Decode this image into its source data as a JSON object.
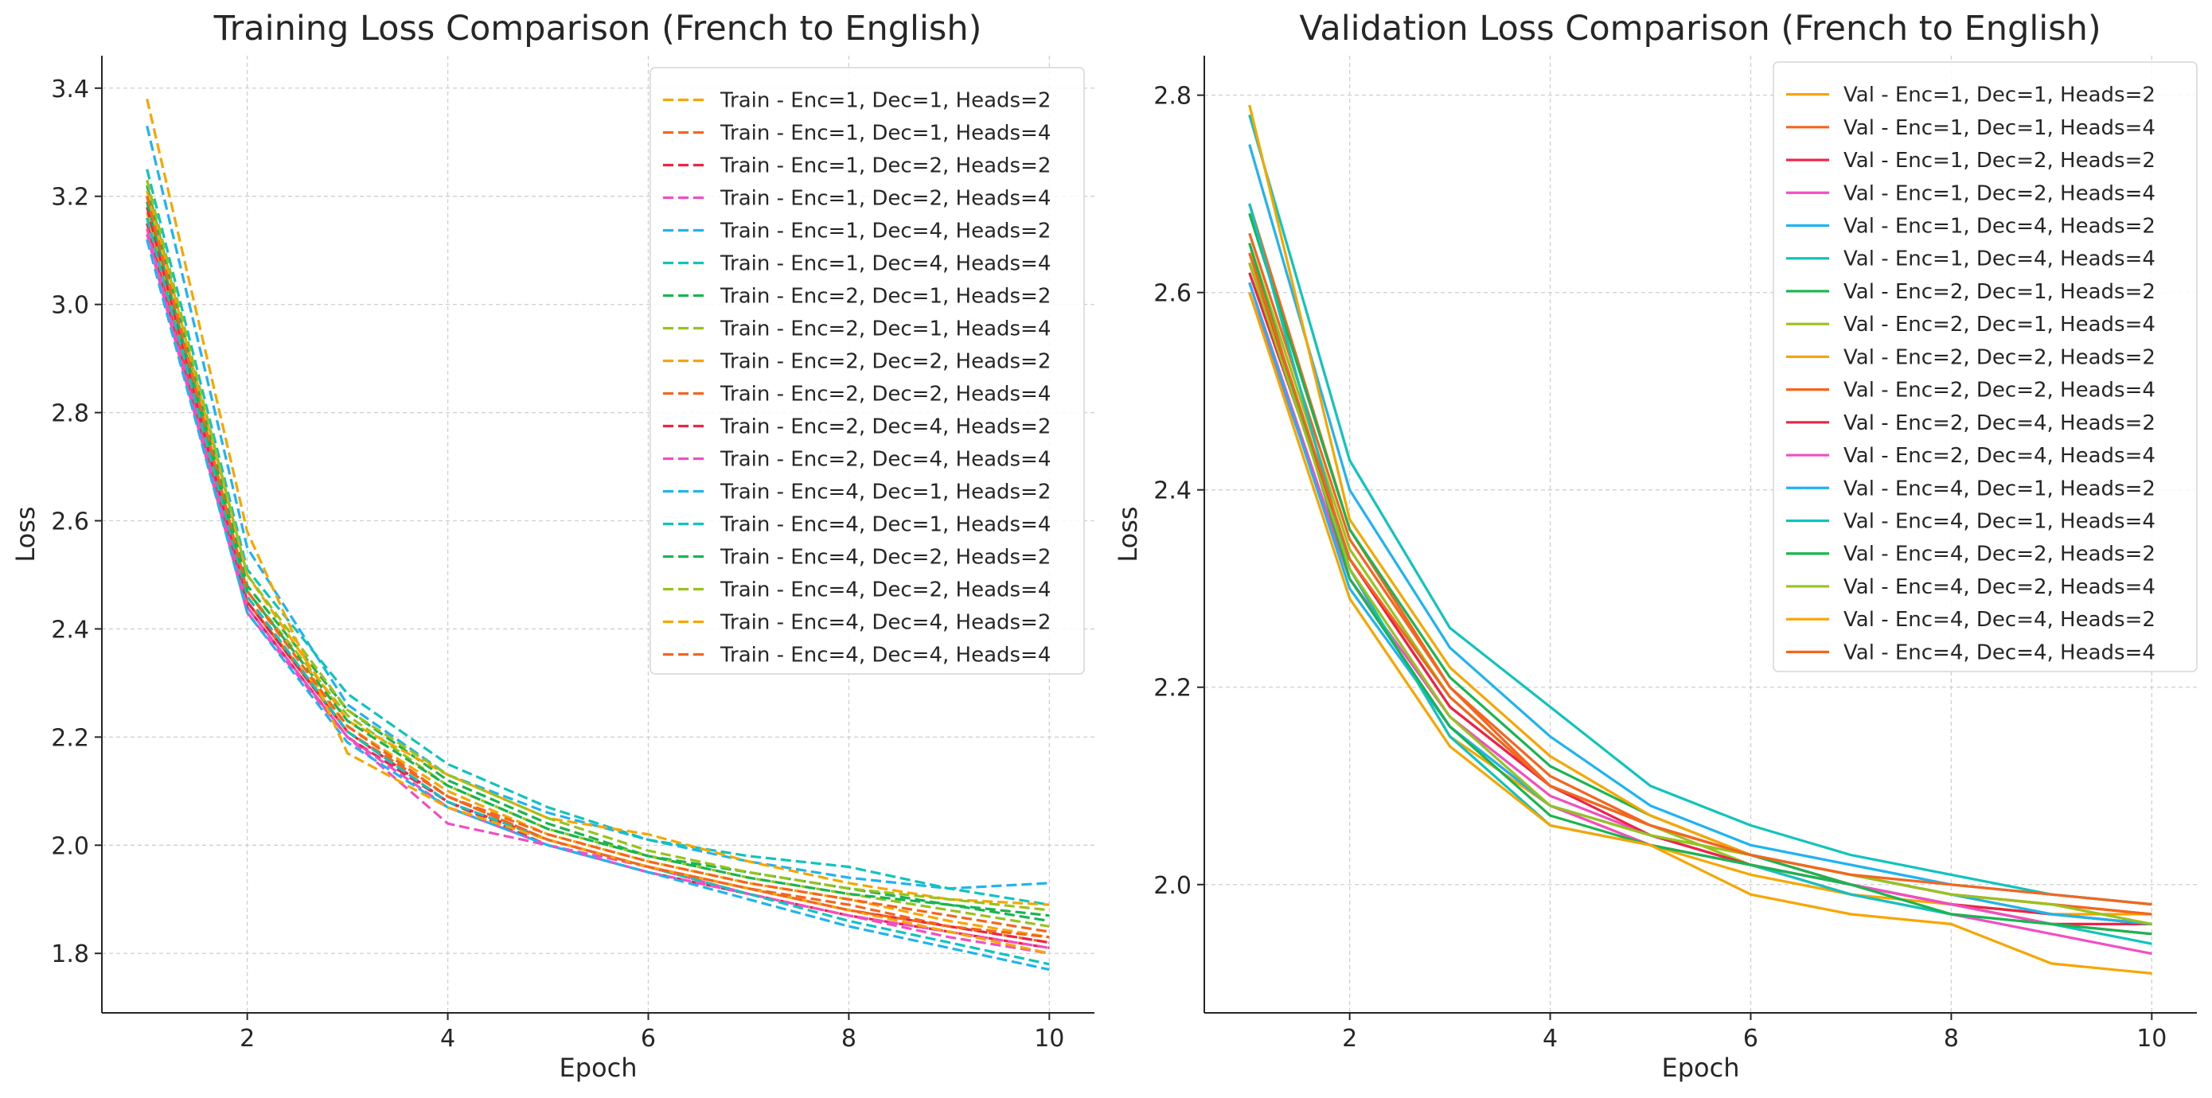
{
  "chart_data": [
    {
      "type": "line",
      "title": "Training Loss Comparison (French to English)",
      "xlabel": "Epoch",
      "ylabel": "Loss",
      "xlim": [
        0.55,
        10.45
      ],
      "ylim": [
        1.69,
        3.46
      ],
      "xticks": [
        2,
        4,
        6,
        8,
        10
      ],
      "yticks": [
        1.8,
        2.0,
        2.2,
        2.4,
        2.6,
        2.8,
        3.0,
        3.2,
        3.4
      ],
      "grid": true,
      "line_style": "dashed",
      "legend_position": "top-right",
      "x": [
        1,
        2,
        3,
        4,
        5,
        6,
        7,
        8,
        9,
        10
      ],
      "series": [
        {
          "name": "Train - Enc=1, Dec=1, Heads=2",
          "color": "#f7a600",
          "values": [
            3.17,
            2.45,
            2.22,
            2.1,
            2.02,
            1.97,
            1.93,
            1.9,
            1.86,
            1.83
          ]
        },
        {
          "name": "Train - Enc=1, Dec=1, Heads=4",
          "color": "#f5651e",
          "values": [
            3.19,
            2.46,
            2.21,
            2.09,
            2.01,
            1.96,
            1.92,
            1.89,
            1.85,
            1.82
          ]
        },
        {
          "name": "Train - Enc=1, Dec=2, Heads=2",
          "color": "#ed2347",
          "values": [
            3.15,
            2.44,
            2.2,
            2.08,
            2.0,
            1.95,
            1.91,
            1.87,
            1.84,
            1.81
          ]
        },
        {
          "name": "Train - Enc=1, Dec=2, Heads=4",
          "color": "#f24ec4",
          "values": [
            3.13,
            2.43,
            2.2,
            2.04,
            2.0,
            1.96,
            1.91,
            1.87,
            1.83,
            1.8
          ]
        },
        {
          "name": "Train - Enc=1, Dec=4, Heads=2",
          "color": "#1fb3f0",
          "values": [
            3.33,
            2.55,
            2.26,
            2.13,
            2.06,
            2.01,
            1.97,
            1.94,
            1.92,
            1.93
          ]
        },
        {
          "name": "Train - Enc=1, Dec=4, Heads=4",
          "color": "#0ec4bd",
          "values": [
            3.25,
            2.51,
            2.28,
            2.15,
            2.07,
            2.01,
            1.98,
            1.96,
            1.92,
            1.89
          ]
        },
        {
          "name": "Train - Enc=2, Dec=1, Heads=2",
          "color": "#19b550",
          "values": [
            3.22,
            2.48,
            2.25,
            2.12,
            2.04,
            1.98,
            1.95,
            1.92,
            1.89,
            1.86
          ]
        },
        {
          "name": "Train - Enc=2, Dec=1, Heads=4",
          "color": "#98c21c",
          "values": [
            3.2,
            2.47,
            2.24,
            2.11,
            2.03,
            1.98,
            1.94,
            1.91,
            1.88,
            1.85
          ]
        },
        {
          "name": "Train - Enc=2, Dec=2, Heads=2",
          "color": "#f7a600",
          "values": [
            3.21,
            2.5,
            2.23,
            2.13,
            2.05,
            2.02,
            1.97,
            1.93,
            1.9,
            1.89
          ]
        },
        {
          "name": "Train - Enc=2, Dec=2, Heads=4",
          "color": "#f5651e",
          "values": [
            3.16,
            2.45,
            2.21,
            2.09,
            2.02,
            1.97,
            1.93,
            1.9,
            1.87,
            1.84
          ]
        },
        {
          "name": "Train - Enc=2, Dec=4, Heads=2",
          "color": "#ed2347",
          "values": [
            3.18,
            2.45,
            2.21,
            2.08,
            2.01,
            1.96,
            1.92,
            1.88,
            1.85,
            1.82
          ]
        },
        {
          "name": "Train - Enc=2, Dec=4, Heads=4",
          "color": "#f24ec4",
          "values": [
            3.14,
            2.44,
            2.2,
            2.07,
            2.0,
            1.95,
            1.91,
            1.87,
            1.84,
            1.81
          ]
        },
        {
          "name": "Train - Enc=4, Dec=1, Heads=2",
          "color": "#1fb3f0",
          "values": [
            3.12,
            2.43,
            2.19,
            2.07,
            2.0,
            1.95,
            1.9,
            1.85,
            1.81,
            1.77
          ]
        },
        {
          "name": "Train - Enc=4, Dec=1, Heads=4",
          "color": "#0ec4bd",
          "values": [
            3.16,
            2.46,
            2.21,
            2.08,
            2.01,
            1.96,
            1.91,
            1.86,
            1.82,
            1.78
          ]
        },
        {
          "name": "Train - Enc=4, Dec=2, Heads=2",
          "color": "#19b550",
          "values": [
            3.19,
            2.47,
            2.23,
            2.11,
            2.03,
            1.98,
            1.94,
            1.91,
            1.89,
            1.87
          ]
        },
        {
          "name": "Train - Enc=4, Dec=2, Heads=4",
          "color": "#98c21c",
          "values": [
            3.23,
            2.5,
            2.25,
            2.13,
            2.05,
            1.99,
            1.95,
            1.92,
            1.9,
            1.88
          ]
        },
        {
          "name": "Train - Enc=4, Dec=4, Heads=2",
          "color": "#f7a600",
          "values": [
            3.38,
            2.58,
            2.17,
            2.07,
            2.01,
            1.96,
            1.92,
            1.88,
            1.84,
            1.8
          ]
        },
        {
          "name": "Train - Enc=4, Dec=4, Heads=4",
          "color": "#f5651e",
          "values": [
            3.2,
            2.47,
            2.22,
            2.09,
            2.01,
            1.96,
            1.92,
            1.88,
            1.85,
            1.83
          ]
        }
      ]
    },
    {
      "type": "line",
      "title": "Validation Loss Comparison (French to English)",
      "xlabel": "Epoch",
      "ylabel": "Loss",
      "xlim": [
        0.55,
        10.45
      ],
      "ylim": [
        1.87,
        2.84
      ],
      "xticks": [
        2,
        4,
        6,
        8,
        10
      ],
      "yticks": [
        2.0,
        2.2,
        2.4,
        2.6,
        2.8
      ],
      "grid": true,
      "line_style": "solid",
      "legend_position": "top-right",
      "x": [
        1,
        2,
        3,
        4,
        5,
        6,
        7,
        8,
        9,
        10
      ],
      "series": [
        {
          "name": "Val - Enc=1, Dec=1, Heads=2",
          "color": "#f7a600",
          "values": [
            2.64,
            2.32,
            2.15,
            2.08,
            2.04,
            2.01,
            1.99,
            1.98,
            1.96,
            1.95
          ]
        },
        {
          "name": "Val - Enc=1, Dec=1, Heads=4",
          "color": "#f5651e",
          "values": [
            2.69,
            2.36,
            2.2,
            2.1,
            2.06,
            2.03,
            2.01,
            1.99,
            1.98,
            1.97
          ]
        },
        {
          "name": "Val - Enc=1, Dec=2, Heads=2",
          "color": "#ed2347",
          "values": [
            2.63,
            2.33,
            2.18,
            2.1,
            2.06,
            2.03,
            2.0,
            1.98,
            1.96,
            1.96
          ]
        },
        {
          "name": "Val - Enc=1, Dec=2, Heads=4",
          "color": "#f24ec4",
          "values": [
            2.61,
            2.31,
            2.17,
            2.09,
            2.05,
            2.02,
            1.99,
            1.97,
            1.95,
            1.93
          ]
        },
        {
          "name": "Val - Enc=1, Dec=4, Heads=2",
          "color": "#1fb3f0",
          "values": [
            2.75,
            2.4,
            2.24,
            2.15,
            2.08,
            2.04,
            2.02,
            2.0,
            1.99,
            1.98
          ]
        },
        {
          "name": "Val - Enc=1, Dec=4, Heads=4",
          "color": "#0ec4bd",
          "values": [
            2.78,
            2.43,
            2.26,
            2.18,
            2.1,
            2.06,
            2.03,
            2.01,
            1.99,
            1.98
          ]
        },
        {
          "name": "Val - Enc=2, Dec=1, Heads=2",
          "color": "#19b550",
          "values": [
            2.68,
            2.36,
            2.21,
            2.12,
            2.07,
            2.03,
            2.0,
            1.98,
            1.97,
            1.96
          ]
        },
        {
          "name": "Val - Enc=2, Dec=1, Heads=4",
          "color": "#98c21c",
          "values": [
            2.65,
            2.34,
            2.19,
            2.1,
            2.06,
            2.02,
            2.0,
            1.98,
            1.97,
            1.96
          ]
        },
        {
          "name": "Val - Enc=2, Dec=2, Heads=2",
          "color": "#f7a600",
          "values": [
            2.79,
            2.37,
            2.22,
            2.13,
            2.07,
            2.03,
            2.01,
            1.99,
            1.97,
            1.97
          ]
        },
        {
          "name": "Val - Enc=2, Dec=2, Heads=4",
          "color": "#f5651e",
          "values": [
            2.66,
            2.35,
            2.2,
            2.11,
            2.06,
            2.03,
            2.01,
            1.99,
            1.98,
            1.97
          ]
        },
        {
          "name": "Val - Enc=2, Dec=4, Heads=2",
          "color": "#ed2347",
          "values": [
            2.62,
            2.33,
            2.18,
            2.1,
            2.05,
            2.02,
            2.0,
            1.98,
            1.97,
            1.96
          ]
        },
        {
          "name": "Val - Enc=2, Dec=4, Heads=4",
          "color": "#f24ec4",
          "values": [
            2.6,
            2.31,
            2.16,
            2.08,
            2.04,
            2.02,
            2.0,
            1.98,
            1.96,
            1.95
          ]
        },
        {
          "name": "Val - Enc=4, Dec=1, Heads=2",
          "color": "#1fb3f0",
          "values": [
            2.61,
            2.3,
            2.16,
            2.08,
            2.05,
            2.03,
            2.01,
            1.99,
            1.97,
            1.96
          ]
        },
        {
          "name": "Val - Enc=4, Dec=1, Heads=4",
          "color": "#0ec4bd",
          "values": [
            2.69,
            2.32,
            2.15,
            2.06,
            2.04,
            2.02,
            1.99,
            1.97,
            1.96,
            1.94
          ]
        },
        {
          "name": "Val - Enc=4, Dec=2, Heads=2",
          "color": "#19b550",
          "values": [
            2.65,
            2.31,
            2.16,
            2.07,
            2.04,
            2.02,
            2.0,
            1.97,
            1.96,
            1.95
          ]
        },
        {
          "name": "Val - Enc=4, Dec=2, Heads=4",
          "color": "#98c21c",
          "values": [
            2.63,
            2.32,
            2.17,
            2.08,
            2.05,
            2.03,
            2.01,
            1.99,
            1.98,
            1.96
          ]
        },
        {
          "name": "Val - Enc=4, Dec=4, Heads=2",
          "color": "#f7a600",
          "values": [
            2.6,
            2.29,
            2.14,
            2.06,
            2.04,
            1.99,
            1.97,
            1.96,
            1.92,
            1.91
          ]
        },
        {
          "name": "Val - Enc=4, Dec=4, Heads=4",
          "color": "#f5651e",
          "values": [
            2.64,
            2.33,
            2.19,
            2.1,
            2.06,
            2.03,
            2.01,
            2.0,
            1.99,
            1.98
          ]
        }
      ]
    }
  ]
}
